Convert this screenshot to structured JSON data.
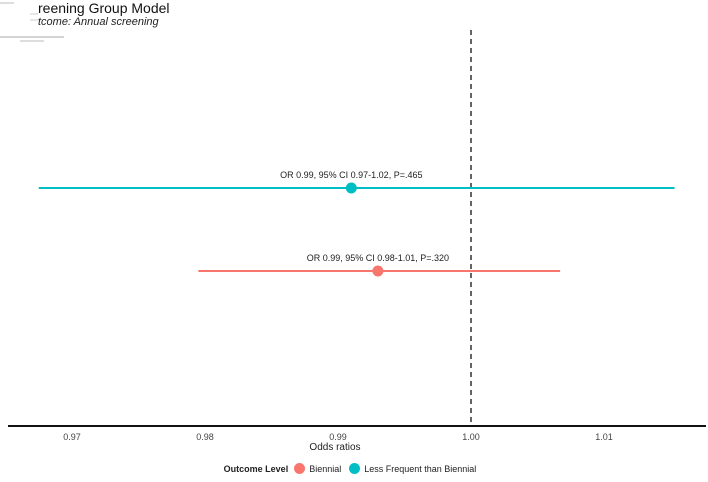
{
  "header": {
    "title": "reening Group Model",
    "subtitle": "tcome: Annual screening"
  },
  "legend": {
    "title": "Outcome Level"
  },
  "colors": {
    "biennial": "#F8766D",
    "less_frequent": "#00BFC4",
    "axis": "#111111",
    "text": "#333333"
  },
  "chart_data": {
    "type": "scatter",
    "subtype": "forest-plot",
    "xlabel": "Odds ratios",
    "xlim": [
      0.9675,
      1.0178
    ],
    "xticks": [
      0.97,
      0.98,
      0.99,
      1.0,
      1.01
    ],
    "xtick_labels": [
      "0.97",
      "0.98",
      "0.99",
      "1.00",
      "1.01"
    ],
    "reference_line": 1.0,
    "grid": false,
    "legend_position": "bottom",
    "series": [
      {
        "name": "Less Frequent than Biennial",
        "color": "#00BFC4",
        "or": 0.991,
        "ci_low": 0.9675,
        "ci_high": 1.0153,
        "label": "OR 0.99, 95% CI 0.97-1.02, P=.465"
      },
      {
        "name": "Biennial",
        "color": "#F8766D",
        "or": 0.993,
        "ci_low": 0.9795,
        "ci_high": 1.0067,
        "label": "OR 0.99, 95% CI 0.98-1.01, P=.320"
      }
    ]
  }
}
